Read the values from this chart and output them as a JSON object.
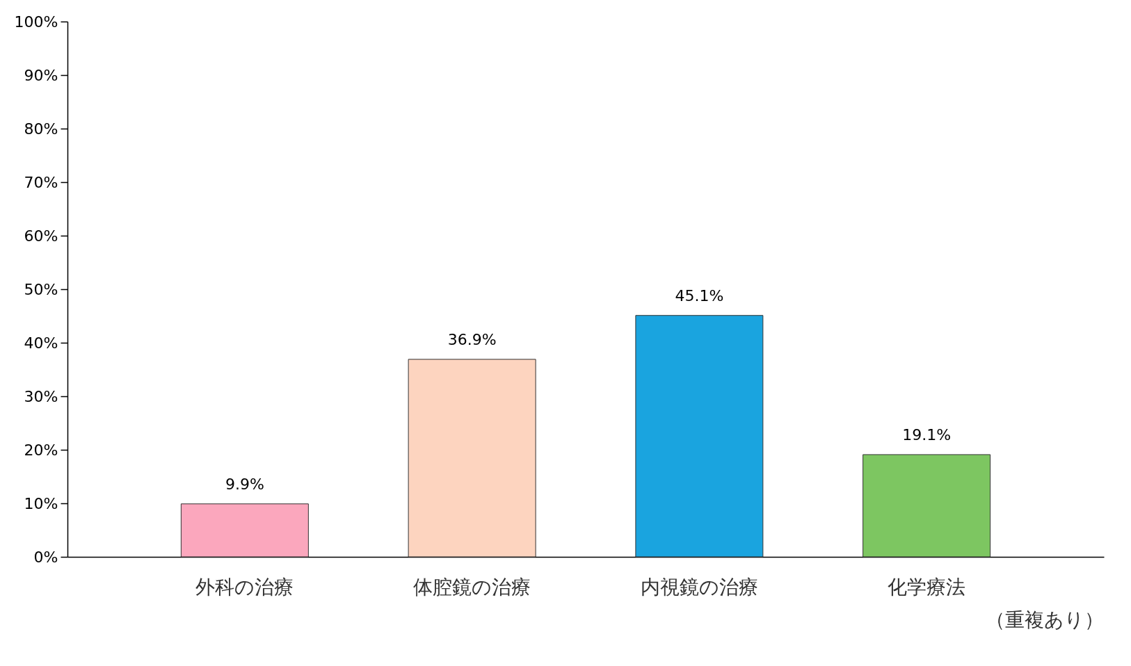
{
  "chart_data": {
    "type": "bar",
    "categories": [
      "外科の治療",
      "体腔鏡の治療",
      "内視鏡の治療",
      "化学療法"
    ],
    "values": [
      9.9,
      36.9,
      45.1,
      19.1
    ],
    "colors": [
      "#fba7bd",
      "#fdd4bf",
      "#1aa4df",
      "#7dc661"
    ],
    "value_labels": [
      "9.9%",
      "36.9%",
      "45.1%",
      "19.1%"
    ],
    "ylim": [
      0,
      100
    ],
    "yticks": [
      {
        "value": 0,
        "label": "0%"
      },
      {
        "value": 10,
        "label": "10%"
      },
      {
        "value": 20,
        "label": "20%"
      },
      {
        "value": 30,
        "label": "30%"
      },
      {
        "value": 40,
        "label": "40%"
      },
      {
        "value": 50,
        "label": "50%"
      },
      {
        "value": 60,
        "label": "60%"
      },
      {
        "value": 70,
        "label": "70%"
      },
      {
        "value": 80,
        "label": "80%"
      },
      {
        "value": 90,
        "label": "90%"
      },
      {
        "value": 100,
        "label": "100%"
      }
    ],
    "grid": false,
    "legend": false,
    "annotations": [
      "（重複あり）"
    ]
  }
}
